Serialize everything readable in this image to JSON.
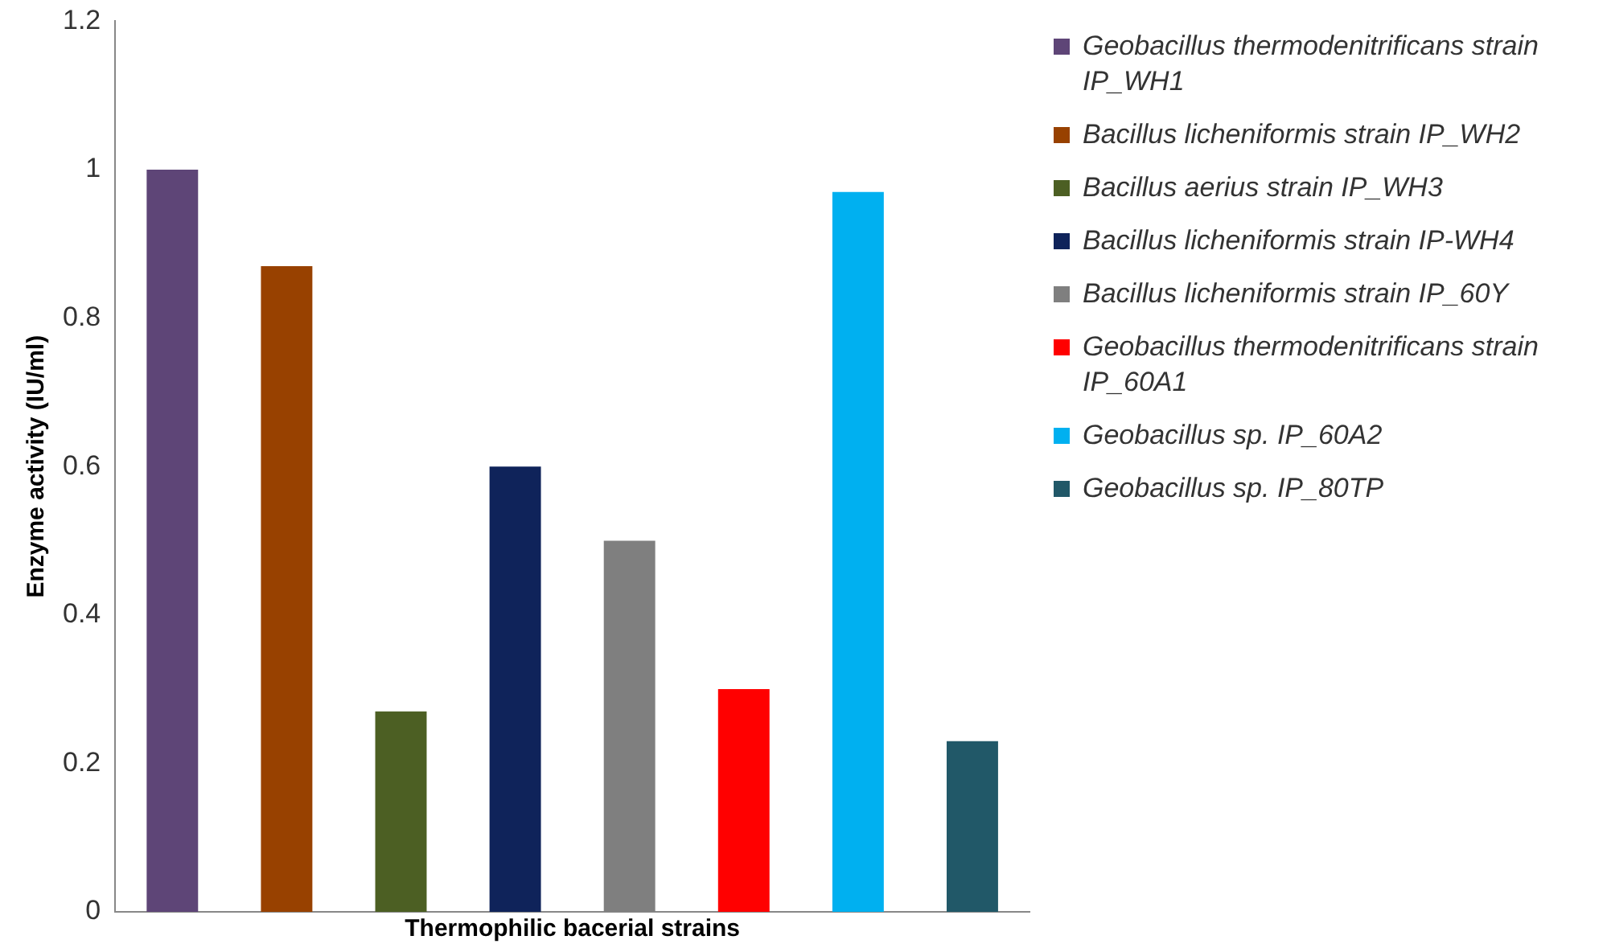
{
  "chart_data": {
    "type": "bar",
    "xlabel": "Thermophilic bacerial strains",
    "ylabel": "Enzyme activity (IU/ml)",
    "categories": [
      null,
      null,
      null,
      null,
      null,
      null,
      null,
      null
    ],
    "series": [
      {
        "name": "Geobacillus thermodenitrificans strain IP_WH1",
        "color": "#5e4577",
        "values": [
          1.0,
          null,
          null,
          null,
          null,
          null,
          null,
          null
        ]
      },
      {
        "name": "Bacillus licheniformis strain IP_WH2",
        "color": "#984100",
        "values": [
          null,
          0.87,
          null,
          null,
          null,
          null,
          null,
          null
        ]
      },
      {
        "name": "Bacillus aerius strain IP_WH3",
        "color": "#4c5f23",
        "values": [
          null,
          null,
          0.27,
          null,
          null,
          null,
          null,
          null
        ]
      },
      {
        "name": "Bacillus licheniformis strain IP-WH4",
        "color": "#0f235a",
        "values": [
          null,
          null,
          null,
          0.6,
          null,
          null,
          null,
          null
        ]
      },
      {
        "name": "Bacillus licheniformis strain IP_60Y",
        "color": "#7f7f7f",
        "values": [
          null,
          null,
          null,
          null,
          0.5,
          null,
          null,
          null
        ]
      },
      {
        "name": "Geobacillus thermodenitrificans strain IP_60A1",
        "color": "#ff0000",
        "values": [
          null,
          null,
          null,
          null,
          null,
          0.3,
          null,
          null
        ]
      },
      {
        "name": "Geobacillus sp. IP_60A2",
        "color": "#00b0f0",
        "values": [
          null,
          null,
          null,
          null,
          null,
          null,
          0.97,
          null
        ]
      },
      {
        "name": "Geobacillus sp. IP_80TP",
        "color": "#215868",
        "values": [
          null,
          null,
          null,
          null,
          null,
          null,
          null,
          0.23
        ]
      }
    ],
    "ylim": [
      0,
      1.2
    ],
    "yticks": [
      0,
      0.2,
      0.4,
      0.6,
      0.8,
      1,
      1.2
    ],
    "grid": false,
    "legend": "right"
  }
}
